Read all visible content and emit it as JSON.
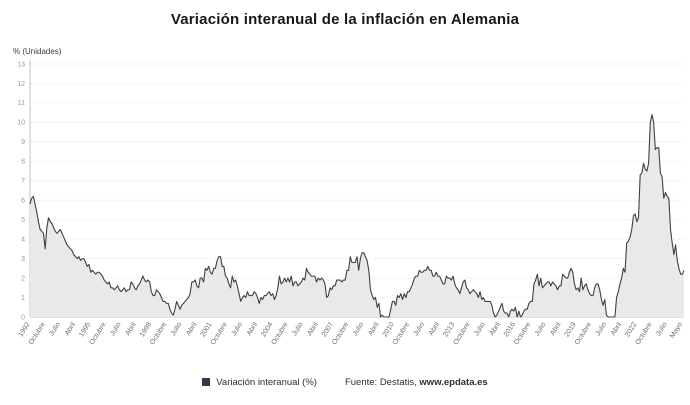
{
  "title": "Variación interanual de la inflación en Alemania",
  "y_axis_unit_label": "% (Unidades)",
  "legend": {
    "series_label": "Variación interanual (%)"
  },
  "source": {
    "prefix": "Fuente: Destatis, ",
    "site": "www.epdata.es"
  },
  "colors": {
    "line": "#3a4147",
    "area_fill": "#e9e9e9",
    "grid": "#d8d8d8",
    "axis": "#c0c0c0",
    "tick_text": "#9a9a9a",
    "x_tick_text": "#6e6e6e",
    "legend_swatch": "#2f3b47",
    "title_text": "#14191e"
  },
  "chart_data": {
    "type": "area",
    "title": "Variación interanual de la inflación en Alemania",
    "xlabel": "",
    "ylabel": "% (Unidades)",
    "ylim": [
      0,
      13
    ],
    "y_tick_interval": 1,
    "grid": "horizontal-dotted",
    "legend_position": "bottom-center",
    "x_start_label": "1992",
    "x_end_label": "Mayo",
    "x_tick_step_months": 9,
    "x_tick_labels": [
      "1992",
      "Octubre",
      "Julio",
      "Abril",
      "1995",
      "Octubre",
      "Julio",
      "Abril",
      "1998",
      "Octubre",
      "Julio",
      "Abril",
      "2001",
      "Octubre",
      "Julio",
      "Abril",
      "2004",
      "Octubre",
      "Julio",
      "Abril",
      "2007",
      "Octubre",
      "Julio",
      "Abril",
      "2010",
      "Octubre",
      "Julio",
      "Abril",
      "2013",
      "Octubre",
      "Julio",
      "Abril",
      "2016",
      "Octubre",
      "Julio",
      "Abril",
      "2019",
      "Octubre",
      "Julio",
      "Abril",
      "2022",
      "Octubre",
      "Julio",
      "Mayo"
    ],
    "series": [
      {
        "name": "Variación interanual (%)",
        "values": [
          5.8,
          6.1,
          6.2,
          5.8,
          5.4,
          4.9,
          4.5,
          4.4,
          4.3,
          3.5,
          4.6,
          5.1,
          4.9,
          4.8,
          4.6,
          4.4,
          4.3,
          4.4,
          4.5,
          4.3,
          4.1,
          3.9,
          3.7,
          3.6,
          3.5,
          3.4,
          3.2,
          3.1,
          3.0,
          3.1,
          2.9,
          3.0,
          3.0,
          2.8,
          2.6,
          2.7,
          2.3,
          2.4,
          2.3,
          2.2,
          2.3,
          2.3,
          2.2,
          2.1,
          1.9,
          1.8,
          1.7,
          1.8,
          1.5,
          1.5,
          1.4,
          1.5,
          1.6,
          1.4,
          1.3,
          1.4,
          1.5,
          1.3,
          1.4,
          1.4,
          1.8,
          1.7,
          1.5,
          1.4,
          1.6,
          1.7,
          1.9,
          2.1,
          1.9,
          1.8,
          1.9,
          1.8,
          1.3,
          1.1,
          1.1,
          1.4,
          1.3,
          1.2,
          1.0,
          0.8,
          0.8,
          0.7,
          0.7,
          0.4,
          0.2,
          0.1,
          0.4,
          0.8,
          0.6,
          0.4,
          0.6,
          0.7,
          0.8,
          0.9,
          1.0,
          1.2,
          1.8,
          1.8,
          1.9,
          1.6,
          1.5,
          2.0,
          2.0,
          1.8,
          2.5,
          2.4,
          2.6,
          2.3,
          2.2,
          2.5,
          2.5,
          2.9,
          3.1,
          3.1,
          2.6,
          2.6,
          2.1,
          2.0,
          1.7,
          1.5,
          2.1,
          1.8,
          1.9,
          1.6,
          1.2,
          0.8,
          1.0,
          1.1,
          1.0,
          1.3,
          1.1,
          1.1,
          1.1,
          1.3,
          1.2,
          1.0,
          0.7,
          1.0,
          0.9,
          1.1,
          1.1,
          1.2,
          1.3,
          1.1,
          1.2,
          0.9,
          1.1,
          1.5,
          2.1,
          1.7,
          1.8,
          2.0,
          1.8,
          2.0,
          1.8,
          2.1,
          1.6,
          1.8,
          1.8,
          1.6,
          1.7,
          1.8,
          2.0,
          1.9,
          2.5,
          2.3,
          2.2,
          2.1,
          2.1,
          2.1,
          1.8,
          2.0,
          1.9,
          2.0,
          1.9,
          1.7,
          1.0,
          1.1,
          1.5,
          1.4,
          1.6,
          1.6,
          1.9,
          1.9,
          1.9,
          1.8,
          1.9,
          1.9,
          2.4,
          2.4,
          3.1,
          2.8,
          2.8,
          2.8,
          3.1,
          2.4,
          3.0,
          3.3,
          3.3,
          3.1,
          2.9,
          2.4,
          1.4,
          1.1,
          0.9,
          1.0,
          0.5,
          0.7,
          0.0,
          0.1,
          0.0,
          0.0,
          0.0,
          0.0,
          0.4,
          0.8,
          0.8,
          0.6,
          1.1,
          1.0,
          1.2,
          0.9,
          1.2,
          1.0,
          1.3,
          1.3,
          1.5,
          1.7,
          2.0,
          2.1,
          2.1,
          2.4,
          2.3,
          2.3,
          2.4,
          2.4,
          2.6,
          2.4,
          2.4,
          2.1,
          2.1,
          2.3,
          2.1,
          2.1,
          1.9,
          1.7,
          1.7,
          2.1,
          2.0,
          2.0,
          1.9,
          2.1,
          1.7,
          1.5,
          1.4,
          1.2,
          1.5,
          1.8,
          1.9,
          1.5,
          1.4,
          1.2,
          1.3,
          1.4,
          1.3,
          1.2,
          1.0,
          1.3,
          0.9,
          1.0,
          0.8,
          0.8,
          0.8,
          0.8,
          0.6,
          0.2,
          0.0,
          0.1,
          0.3,
          0.5,
          0.7,
          0.3,
          0.2,
          0.2,
          0.0,
          0.3,
          0.4,
          0.3,
          0.5,
          0.0,
          0.3,
          0.0,
          0.1,
          0.3,
          0.4,
          0.4,
          0.7,
          0.8,
          0.8,
          1.7,
          1.9,
          2.2,
          1.6,
          2.0,
          1.5,
          1.6,
          1.7,
          1.8,
          1.8,
          1.6,
          1.8,
          1.7,
          1.6,
          1.4,
          1.6,
          1.6,
          2.2,
          2.1,
          2.0,
          2.0,
          2.3,
          2.5,
          2.3,
          1.7,
          1.4,
          1.5,
          1.3,
          2.0,
          1.4,
          1.6,
          1.7,
          1.4,
          1.2,
          1.1,
          1.1,
          1.5,
          1.7,
          1.7,
          1.4,
          0.9,
          0.6,
          0.9,
          0.1,
          0.0,
          0.0,
          0.0,
          0.0,
          0.0,
          1.0,
          1.3,
          1.7,
          2.0,
          2.5,
          2.3,
          3.8,
          3.9,
          4.1,
          4.5,
          5.2,
          5.3,
          4.9,
          5.1,
          7.3,
          7.4,
          7.9,
          7.6,
          7.5,
          7.9,
          10.0,
          10.4,
          10.0,
          8.6,
          8.7,
          8.7,
          7.4,
          7.2,
          6.1,
          6.4,
          6.2,
          6.1,
          4.5,
          3.8,
          3.2,
          3.7,
          2.9,
          2.5,
          2.2,
          2.2,
          2.4
        ]
      }
    ]
  }
}
